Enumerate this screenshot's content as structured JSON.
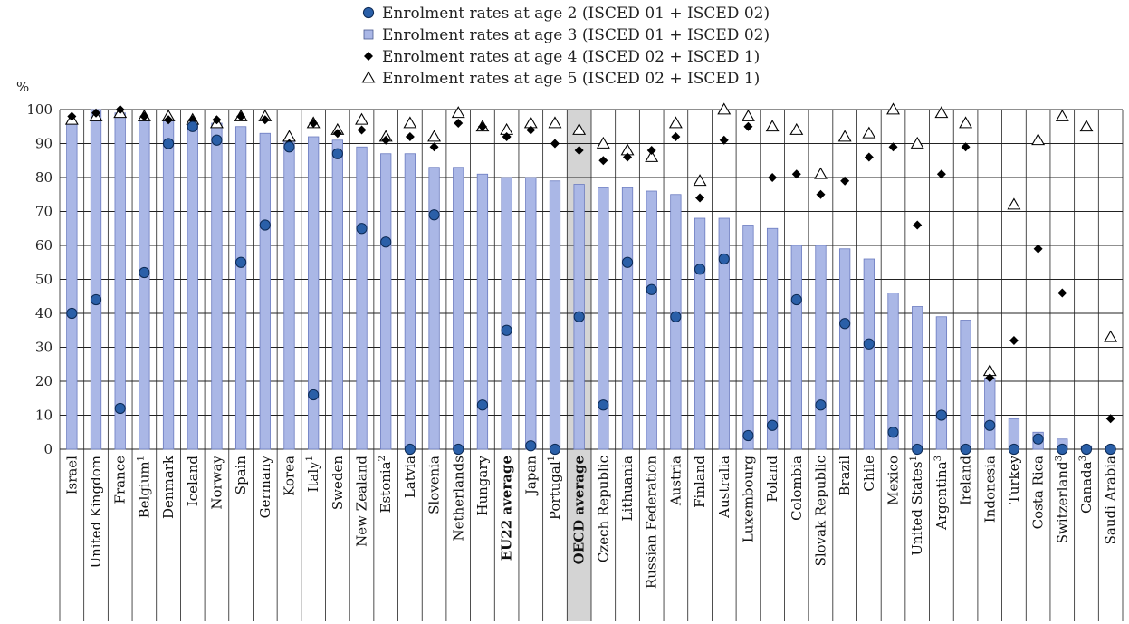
{
  "chart_data": {
    "type": "bar",
    "ylabel": "%",
    "ylim": [
      0,
      100
    ],
    "yticks": [
      0,
      10,
      20,
      30,
      40,
      50,
      60,
      70,
      80,
      90,
      100
    ],
    "grid": true,
    "legend_position": "top-center",
    "highlight_category": "OECD average",
    "bold_categories": [
      "EU22 average",
      "OECD average"
    ],
    "categories": [
      {
        "name": "Israel",
        "sup": ""
      },
      {
        "name": "United Kingdom",
        "sup": ""
      },
      {
        "name": "France",
        "sup": ""
      },
      {
        "name": "Belgium",
        "sup": "1"
      },
      {
        "name": "Denmark",
        "sup": ""
      },
      {
        "name": "Iceland",
        "sup": ""
      },
      {
        "name": "Norway",
        "sup": ""
      },
      {
        "name": "Spain",
        "sup": ""
      },
      {
        "name": "Germany",
        "sup": ""
      },
      {
        "name": "Korea",
        "sup": ""
      },
      {
        "name": "Italy",
        "sup": "1"
      },
      {
        "name": "Sweden",
        "sup": ""
      },
      {
        "name": "New Zealand",
        "sup": ""
      },
      {
        "name": "Estonia",
        "sup": "2"
      },
      {
        "name": "Latvia",
        "sup": ""
      },
      {
        "name": "Slovenia",
        "sup": ""
      },
      {
        "name": "Netherlands",
        "sup": ""
      },
      {
        "name": "Hungary",
        "sup": ""
      },
      {
        "name": "EU22 average",
        "sup": ""
      },
      {
        "name": "Japan",
        "sup": ""
      },
      {
        "name": "Portugal",
        "sup": "1"
      },
      {
        "name": "OECD average",
        "sup": ""
      },
      {
        "name": "Czech Republic",
        "sup": ""
      },
      {
        "name": "Lithuania",
        "sup": ""
      },
      {
        "name": "Russian Federation",
        "sup": ""
      },
      {
        "name": "Austria",
        "sup": ""
      },
      {
        "name": "Finland",
        "sup": ""
      },
      {
        "name": "Australia",
        "sup": ""
      },
      {
        "name": "Luxembourg",
        "sup": ""
      },
      {
        "name": "Poland",
        "sup": ""
      },
      {
        "name": "Colombia",
        "sup": ""
      },
      {
        "name": "Slovak Republic",
        "sup": ""
      },
      {
        "name": "Brazil",
        "sup": ""
      },
      {
        "name": "Chile",
        "sup": ""
      },
      {
        "name": "Mexico",
        "sup": ""
      },
      {
        "name": "United States",
        "sup": "1"
      },
      {
        "name": "Argentina",
        "sup": "3"
      },
      {
        "name": "Ireland",
        "sup": ""
      },
      {
        "name": "Indonesia",
        "sup": ""
      },
      {
        "name": "Turkey",
        "sup": ""
      },
      {
        "name": "Costa Rica",
        "sup": ""
      },
      {
        "name": "Switzerland",
        "sup": "3"
      },
      {
        "name": "Canada",
        "sup": "3"
      },
      {
        "name": "Saudi Arabia",
        "sup": ""
      }
    ],
    "series": [
      {
        "name": "Enrolment rates at age 2  (ISCED 01 + ISCED 02)",
        "mark": "circle",
        "color": "#2a5fa8",
        "values": [
          40,
          44,
          12,
          52,
          90,
          95,
          91,
          55,
          66,
          89,
          16,
          87,
          65,
          61,
          0,
          69,
          0,
          13,
          35,
          1,
          0,
          39,
          13,
          55,
          47,
          39,
          53,
          56,
          4,
          7,
          44,
          13,
          37,
          31,
          5,
          0,
          10,
          0,
          7,
          0,
          3,
          0,
          0,
          0
        ]
      },
      {
        "name": "Enrolment rates at age 3  (ISCED 01 + ISCED 02)",
        "mark": "bar",
        "color": "#aab7e6",
        "values": [
          96,
          100,
          99,
          97,
          97,
          96,
          96,
          95,
          93,
          91,
          92,
          91,
          89,
          87,
          87,
          83,
          83,
          81,
          80,
          80,
          79,
          78,
          77,
          77,
          76,
          75,
          68,
          68,
          66,
          65,
          60,
          60,
          59,
          56,
          46,
          42,
          39,
          38,
          21,
          9,
          5,
          3,
          1,
          0
        ]
      },
      {
        "name": "Enrolment rates at age 4 (ISCED 02 + ISCED 1)",
        "mark": "diamond",
        "color": "#000000",
        "values": [
          98,
          99,
          100,
          98,
          97,
          97,
          97,
          98,
          97,
          90,
          96,
          93,
          94,
          91,
          92,
          89,
          96,
          95,
          92,
          94,
          90,
          88,
          85,
          86,
          88,
          92,
          74,
          91,
          95,
          80,
          81,
          75,
          79,
          86,
          89,
          66,
          81,
          89,
          21,
          32,
          59,
          46,
          null,
          9
        ]
      },
      {
        "name": "Enrolment rates at age 5 (ISCED 02 + ISCED 1)",
        "mark": "triangle",
        "color": "#000000",
        "values": [
          97,
          98,
          99,
          98,
          98,
          97,
          96,
          98,
          98,
          92,
          96,
          94,
          97,
          92,
          96,
          92,
          99,
          95,
          94,
          96,
          96,
          94,
          90,
          88,
          86,
          96,
          79,
          100,
          98,
          95,
          94,
          81,
          92,
          93,
          100,
          90,
          99,
          96,
          23,
          72,
          91,
          98,
          95,
          33
        ]
      }
    ]
  }
}
